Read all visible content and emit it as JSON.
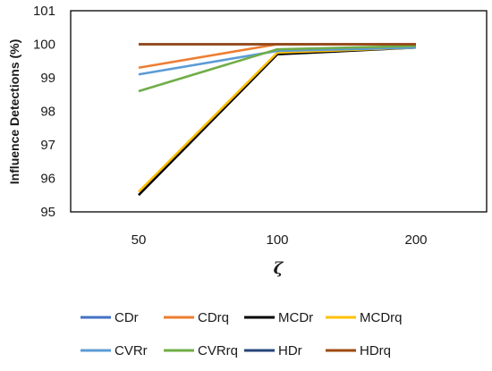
{
  "chart_data": {
    "type": "line",
    "title": "",
    "xlabel": "ζ",
    "ylabel": "Influence Detections (%)",
    "categories": [
      "50",
      "100",
      "200"
    ],
    "ylim": [
      95,
      101
    ],
    "yticks": [
      95,
      96,
      97,
      98,
      99,
      100,
      101
    ],
    "grid": false,
    "legend_position": "bottom",
    "series": [
      {
        "name": "CDr",
        "color": "#4472C4",
        "values": [
          100,
          100,
          100
        ]
      },
      {
        "name": "CDrq",
        "color": "#ED7D31",
        "values": [
          99.3,
          100,
          100
        ]
      },
      {
        "name": "MCDr",
        "color": "#000000",
        "values": [
          95.5,
          99.7,
          99.9
        ]
      },
      {
        "name": "MCDrq",
        "color": "#FFC000",
        "values": [
          95.6,
          99.75,
          99.9
        ]
      },
      {
        "name": "CVRr",
        "color": "#5B9BD5",
        "values": [
          99.1,
          99.8,
          99.9
        ]
      },
      {
        "name": "CVRrq",
        "color": "#70AD47",
        "values": [
          98.6,
          99.85,
          99.95
        ]
      },
      {
        "name": "HDr",
        "color": "#264478",
        "values": [
          100,
          100,
          100
        ]
      },
      {
        "name": "HDrq",
        "color": "#9E480E",
        "values": [
          100,
          100,
          100
        ]
      }
    ]
  }
}
